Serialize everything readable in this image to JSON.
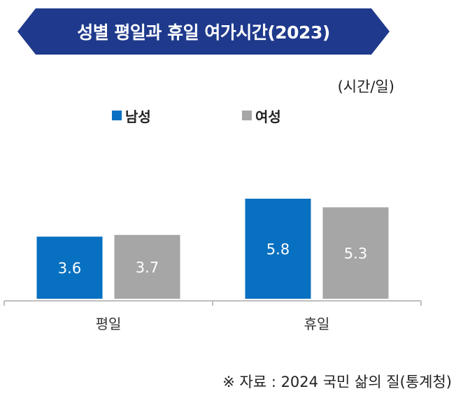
{
  "title": "성별 평일과 휴일 여가시간(2023)",
  "unit": "(시간/일)",
  "source": "※ 자료 : 2024 국민 삶의 질(통계청)",
  "colors": {
    "banner": "#1F3A8C",
    "male": "#0870C0",
    "female": "#A6A6A6",
    "axis": "#BFBFBF"
  },
  "chart_data": {
    "type": "bar",
    "title": "성별 평일과 휴일 여가시간(2023)",
    "ylabel": "(시간/일)",
    "categories": [
      "평일",
      "휴일"
    ],
    "series": [
      {
        "name": "남성",
        "values": [
          3.6,
          5.8
        ]
      },
      {
        "name": "여성",
        "values": [
          3.7,
          5.3
        ]
      }
    ],
    "ylim": [
      0,
      6.25
    ],
    "grid": false,
    "legend": "top-center"
  }
}
